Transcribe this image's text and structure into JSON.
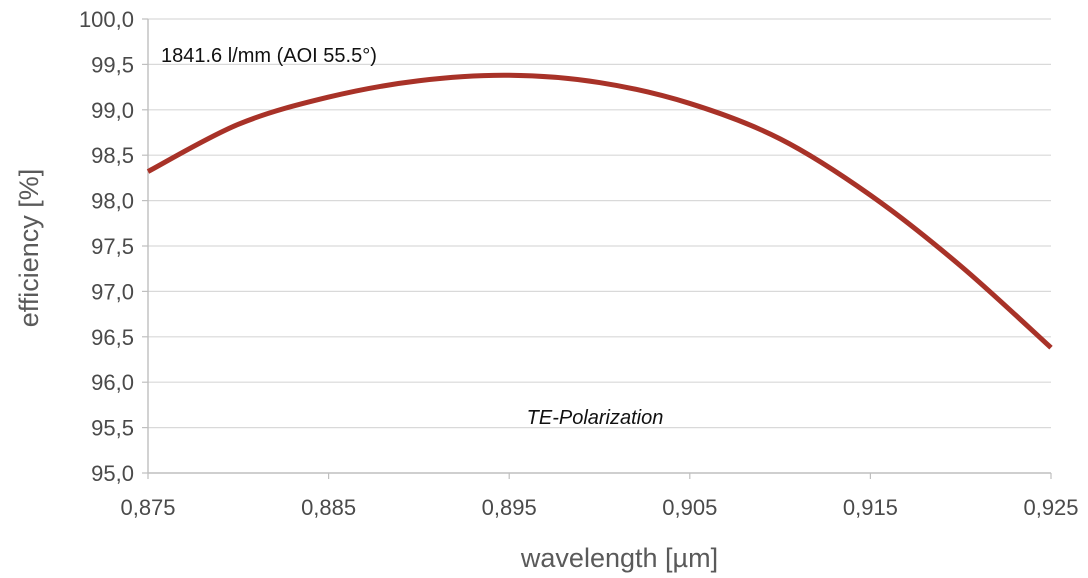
{
  "chart_data": {
    "type": "line",
    "title": "",
    "xlabel": "wavelength [µm]",
    "ylabel": "efficiency [%]",
    "xlim": [
      0.875,
      0.925
    ],
    "ylim": [
      95.0,
      100.0
    ],
    "grid": true,
    "x_ticks": [
      "0,875",
      "0,885",
      "0,895",
      "0,905",
      "0,915",
      "0,925"
    ],
    "y_ticks": [
      "95,0",
      "95,5",
      "96,0",
      "96,5",
      "97,0",
      "97,5",
      "98,0",
      "98,5",
      "99,0",
      "99,5",
      "100,0"
    ],
    "x_tick_values": [
      0.875,
      0.885,
      0.895,
      0.905,
      0.915,
      0.925
    ],
    "y_tick_values": [
      95.0,
      95.5,
      96.0,
      96.5,
      97.0,
      97.5,
      98.0,
      98.5,
      99.0,
      99.5,
      100.0
    ],
    "annotations": [
      {
        "text": "1841.6 l/mm (AOI 55.5°)",
        "style": "normal"
      },
      {
        "text": "TE-Polarization",
        "style": "italic"
      }
    ],
    "series": [
      {
        "color": "#a83228",
        "x": [
          0.875,
          0.88,
          0.885,
          0.89,
          0.895,
          0.9,
          0.905,
          0.91,
          0.915,
          0.92,
          0.925
        ],
        "y": [
          98.32,
          98.84,
          99.14,
          99.32,
          99.38,
          99.3,
          99.07,
          98.68,
          98.06,
          97.28,
          96.38
        ]
      }
    ]
  }
}
